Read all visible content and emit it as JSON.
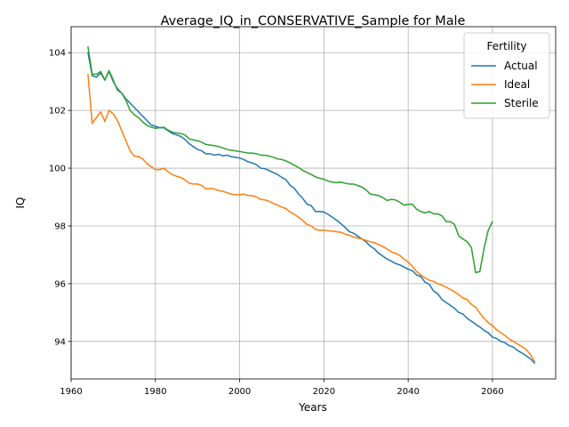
{
  "chart_data": {
    "type": "line",
    "title": "Average_IQ_in_CONSERVATIVE_Sample for Male",
    "xlabel": "Years",
    "ylabel": "IQ",
    "xlim": [
      1960,
      2075
    ],
    "ylim": [
      92.7,
      104.9
    ],
    "xticks": [
      1960,
      1980,
      2000,
      2020,
      2040,
      2060
    ],
    "yticks": [
      94,
      96,
      98,
      100,
      102,
      104
    ],
    "grid": true,
    "legend": {
      "title": "Fertility",
      "placement": "top-right"
    },
    "series": [
      {
        "name": "Actual",
        "color": "#1f77b4",
        "points": [
          [
            1964,
            104.0
          ],
          [
            1965,
            103.2
          ],
          [
            1966,
            103.15
          ],
          [
            1967,
            103.3
          ],
          [
            1968,
            103.05
          ],
          [
            1969,
            103.35
          ],
          [
            1970,
            103.0
          ],
          [
            1971,
            102.75
          ],
          [
            1972,
            102.6
          ],
          [
            1973,
            102.4
          ],
          [
            1974,
            102.25
          ],
          [
            1975,
            102.1
          ],
          [
            1976,
            101.95
          ],
          [
            1977,
            101.8
          ],
          [
            1978,
            101.65
          ],
          [
            1979,
            101.5
          ],
          [
            1980,
            101.45
          ],
          [
            1981,
            101.4
          ],
          [
            1982,
            101.4
          ],
          [
            1983,
            101.3
          ],
          [
            1984,
            101.2
          ],
          [
            1985,
            101.15
          ],
          [
            1986,
            101.1
          ],
          [
            1987,
            101.0
          ],
          [
            1988,
            100.85
          ],
          [
            1989,
            100.75
          ],
          [
            1990,
            100.65
          ],
          [
            1991,
            100.6
          ],
          [
            1992,
            100.5
          ],
          [
            1993,
            100.5
          ],
          [
            1994,
            100.45
          ],
          [
            1995,
            100.48
          ],
          [
            1996,
            100.43
          ],
          [
            1997,
            100.45
          ],
          [
            1998,
            100.4
          ],
          [
            1999,
            100.38
          ],
          [
            2000,
            100.35
          ],
          [
            2001,
            100.3
          ],
          [
            2002,
            100.22
          ],
          [
            2003,
            100.18
          ],
          [
            2004,
            100.12
          ],
          [
            2005,
            100.0
          ],
          [
            2006,
            99.98
          ],
          [
            2007,
            99.92
          ],
          [
            2008,
            99.85
          ],
          [
            2009,
            99.78
          ],
          [
            2010,
            99.68
          ],
          [
            2011,
            99.6
          ],
          [
            2012,
            99.4
          ],
          [
            2013,
            99.3
          ],
          [
            2014,
            99.1
          ],
          [
            2015,
            98.95
          ],
          [
            2016,
            98.75
          ],
          [
            2017,
            98.7
          ],
          [
            2018,
            98.5
          ],
          [
            2019,
            98.5
          ],
          [
            2020,
            98.48
          ],
          [
            2021,
            98.4
          ],
          [
            2022,
            98.3
          ],
          [
            2023,
            98.2
          ],
          [
            2024,
            98.08
          ],
          [
            2025,
            97.95
          ],
          [
            2026,
            97.8
          ],
          [
            2027,
            97.75
          ],
          [
            2028,
            97.65
          ],
          [
            2029,
            97.55
          ],
          [
            2030,
            97.45
          ],
          [
            2031,
            97.3
          ],
          [
            2032,
            97.2
          ],
          [
            2033,
            97.05
          ],
          [
            2034,
            96.95
          ],
          [
            2035,
            96.85
          ],
          [
            2036,
            96.78
          ],
          [
            2037,
            96.7
          ],
          [
            2038,
            96.65
          ],
          [
            2039,
            96.58
          ],
          [
            2040,
            96.5
          ],
          [
            2041,
            96.45
          ],
          [
            2042,
            96.3
          ],
          [
            2043,
            96.25
          ],
          [
            2044,
            96.05
          ],
          [
            2045,
            95.98
          ],
          [
            2046,
            95.75
          ],
          [
            2047,
            95.65
          ],
          [
            2048,
            95.45
          ],
          [
            2049,
            95.35
          ],
          [
            2050,
            95.25
          ],
          [
            2051,
            95.15
          ],
          [
            2052,
            95.0
          ],
          [
            2053,
            94.95
          ],
          [
            2054,
            94.8
          ],
          [
            2055,
            94.7
          ],
          [
            2056,
            94.6
          ],
          [
            2057,
            94.5
          ],
          [
            2058,
            94.38
          ],
          [
            2059,
            94.3
          ],
          [
            2060,
            94.15
          ],
          [
            2061,
            94.1
          ],
          [
            2062,
            94.0
          ],
          [
            2063,
            93.95
          ],
          [
            2064,
            93.85
          ],
          [
            2065,
            93.8
          ],
          [
            2066,
            93.68
          ],
          [
            2067,
            93.6
          ],
          [
            2068,
            93.5
          ],
          [
            2069,
            93.4
          ],
          [
            2070,
            93.25
          ]
        ]
      },
      {
        "name": "Ideal",
        "color": "#ff7f0e",
        "points": [
          [
            1964,
            103.25
          ],
          [
            1965,
            101.55
          ],
          [
            1966,
            101.75
          ],
          [
            1967,
            101.95
          ],
          [
            1968,
            101.62
          ],
          [
            1969,
            102.0
          ],
          [
            1970,
            101.88
          ],
          [
            1971,
            101.65
          ],
          [
            1972,
            101.3
          ],
          [
            1973,
            100.95
          ],
          [
            1974,
            100.6
          ],
          [
            1975,
            100.42
          ],
          [
            1976,
            100.4
          ],
          [
            1977,
            100.32
          ],
          [
            1978,
            100.15
          ],
          [
            1979,
            100.05
          ],
          [
            1980,
            99.95
          ],
          [
            1981,
            99.95
          ],
          [
            1982,
            100.0
          ],
          [
            1983,
            99.88
          ],
          [
            1984,
            99.78
          ],
          [
            1985,
            99.72
          ],
          [
            1986,
            99.68
          ],
          [
            1987,
            99.6
          ],
          [
            1988,
            99.48
          ],
          [
            1989,
            99.45
          ],
          [
            1990,
            99.45
          ],
          [
            1991,
            99.4
          ],
          [
            1992,
            99.28
          ],
          [
            1993,
            99.3
          ],
          [
            1994,
            99.28
          ],
          [
            1995,
            99.22
          ],
          [
            1996,
            99.2
          ],
          [
            1997,
            99.15
          ],
          [
            1998,
            99.1
          ],
          [
            1999,
            99.08
          ],
          [
            2000,
            99.08
          ],
          [
            2001,
            99.1
          ],
          [
            2002,
            99.05
          ],
          [
            2003,
            99.05
          ],
          [
            2004,
            99.0
          ],
          [
            2005,
            98.92
          ],
          [
            2006,
            98.9
          ],
          [
            2007,
            98.85
          ],
          [
            2008,
            98.78
          ],
          [
            2009,
            98.72
          ],
          [
            2010,
            98.65
          ],
          [
            2011,
            98.6
          ],
          [
            2012,
            98.48
          ],
          [
            2013,
            98.4
          ],
          [
            2014,
            98.3
          ],
          [
            2015,
            98.18
          ],
          [
            2016,
            98.05
          ],
          [
            2017,
            98.0
          ],
          [
            2018,
            97.88
          ],
          [
            2019,
            97.85
          ],
          [
            2020,
            97.85
          ],
          [
            2021,
            97.83
          ],
          [
            2022,
            97.82
          ],
          [
            2023,
            97.8
          ],
          [
            2024,
            97.78
          ],
          [
            2025,
            97.72
          ],
          [
            2026,
            97.68
          ],
          [
            2027,
            97.62
          ],
          [
            2028,
            97.58
          ],
          [
            2029,
            97.55
          ],
          [
            2030,
            97.5
          ],
          [
            2031,
            97.45
          ],
          [
            2032,
            97.42
          ],
          [
            2033,
            97.35
          ],
          [
            2034,
            97.28
          ],
          [
            2035,
            97.2
          ],
          [
            2036,
            97.1
          ],
          [
            2037,
            97.05
          ],
          [
            2038,
            96.98
          ],
          [
            2039,
            96.85
          ],
          [
            2040,
            96.75
          ],
          [
            2041,
            96.6
          ],
          [
            2042,
            96.42
          ],
          [
            2043,
            96.3
          ],
          [
            2044,
            96.2
          ],
          [
            2045,
            96.12
          ],
          [
            2046,
            96.08
          ],
          [
            2047,
            96.0
          ],
          [
            2048,
            95.95
          ],
          [
            2049,
            95.88
          ],
          [
            2050,
            95.8
          ],
          [
            2051,
            95.72
          ],
          [
            2052,
            95.62
          ],
          [
            2053,
            95.5
          ],
          [
            2054,
            95.45
          ],
          [
            2055,
            95.28
          ],
          [
            2056,
            95.18
          ],
          [
            2057,
            94.98
          ],
          [
            2058,
            94.8
          ],
          [
            2059,
            94.65
          ],
          [
            2060,
            94.55
          ],
          [
            2061,
            94.4
          ],
          [
            2062,
            94.3
          ],
          [
            2063,
            94.2
          ],
          [
            2064,
            94.08
          ],
          [
            2065,
            94.0
          ],
          [
            2066,
            93.9
          ],
          [
            2067,
            93.82
          ],
          [
            2068,
            93.72
          ],
          [
            2069,
            93.55
          ],
          [
            2070,
            93.3
          ]
        ]
      },
      {
        "name": "Sterile",
        "color": "#2ca02c",
        "points": [
          [
            1964,
            104.2
          ],
          [
            1965,
            103.25
          ],
          [
            1966,
            103.25
          ],
          [
            1967,
            103.35
          ],
          [
            1968,
            103.05
          ],
          [
            1969,
            103.38
          ],
          [
            1970,
            103.05
          ],
          [
            1971,
            102.7
          ],
          [
            1972,
            102.6
          ],
          [
            1973,
            102.35
          ],
          [
            1974,
            102.0
          ],
          [
            1975,
            101.85
          ],
          [
            1976,
            101.75
          ],
          [
            1977,
            101.6
          ],
          [
            1978,
            101.48
          ],
          [
            1979,
            101.42
          ],
          [
            1980,
            101.38
          ],
          [
            1981,
            101.4
          ],
          [
            1982,
            101.42
          ],
          [
            1983,
            101.32
          ],
          [
            1984,
            101.25
          ],
          [
            1985,
            101.22
          ],
          [
            1986,
            101.2
          ],
          [
            1987,
            101.15
          ],
          [
            1988,
            101.02
          ],
          [
            1989,
            100.98
          ],
          [
            1990,
            100.95
          ],
          [
            1991,
            100.9
          ],
          [
            1992,
            100.82
          ],
          [
            1993,
            100.8
          ],
          [
            1994,
            100.78
          ],
          [
            1995,
            100.75
          ],
          [
            1996,
            100.7
          ],
          [
            1997,
            100.65
          ],
          [
            1998,
            100.62
          ],
          [
            1999,
            100.6
          ],
          [
            2000,
            100.58
          ],
          [
            2001,
            100.55
          ],
          [
            2002,
            100.52
          ],
          [
            2003,
            100.52
          ],
          [
            2004,
            100.5
          ],
          [
            2005,
            100.45
          ],
          [
            2006,
            100.45
          ],
          [
            2007,
            100.42
          ],
          [
            2008,
            100.38
          ],
          [
            2009,
            100.32
          ],
          [
            2010,
            100.3
          ],
          [
            2011,
            100.25
          ],
          [
            2012,
            100.18
          ],
          [
            2013,
            100.1
          ],
          [
            2014,
            100.02
          ],
          [
            2015,
            99.92
          ],
          [
            2016,
            99.85
          ],
          [
            2017,
            99.78
          ],
          [
            2018,
            99.7
          ],
          [
            2019,
            99.65
          ],
          [
            2020,
            99.62
          ],
          [
            2021,
            99.55
          ],
          [
            2022,
            99.52
          ],
          [
            2023,
            99.5
          ],
          [
            2024,
            99.52
          ],
          [
            2025,
            99.48
          ],
          [
            2026,
            99.45
          ],
          [
            2027,
            99.45
          ],
          [
            2028,
            99.4
          ],
          [
            2029,
            99.35
          ],
          [
            2030,
            99.25
          ],
          [
            2031,
            99.1
          ],
          [
            2032,
            99.08
          ],
          [
            2033,
            99.05
          ],
          [
            2034,
            98.98
          ],
          [
            2035,
            98.88
          ],
          [
            2036,
            98.92
          ],
          [
            2037,
            98.9
          ],
          [
            2038,
            98.82
          ],
          [
            2039,
            98.72
          ],
          [
            2040,
            98.75
          ],
          [
            2041,
            98.75
          ],
          [
            2042,
            98.58
          ],
          [
            2043,
            98.5
          ],
          [
            2044,
            98.45
          ],
          [
            2045,
            98.5
          ],
          [
            2046,
            98.42
          ],
          [
            2047,
            98.42
          ],
          [
            2048,
            98.35
          ],
          [
            2049,
            98.15
          ],
          [
            2050,
            98.15
          ],
          [
            2051,
            98.05
          ],
          [
            2052,
            97.65
          ],
          [
            2053,
            97.55
          ],
          [
            2054,
            97.45
          ],
          [
            2055,
            97.25
          ],
          [
            2056,
            96.38
          ],
          [
            2057,
            96.42
          ],
          [
            2058,
            97.22
          ],
          [
            2059,
            97.85
          ],
          [
            2060,
            98.15
          ]
        ]
      }
    ]
  }
}
